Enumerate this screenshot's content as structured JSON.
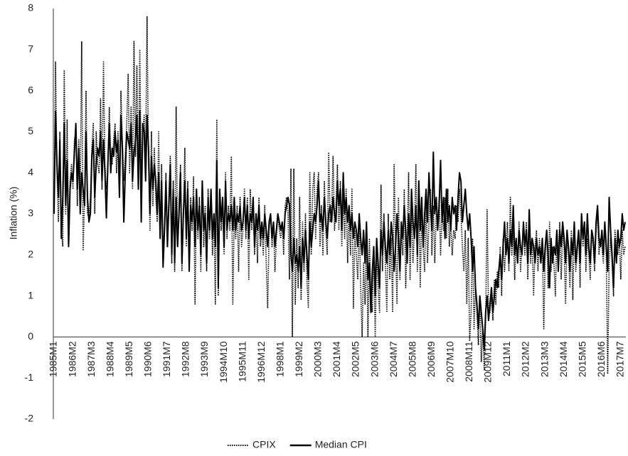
{
  "chart_data": {
    "type": "line",
    "y_label": "Inflation (%)",
    "ylim": [
      -2,
      8
    ],
    "yticks": [
      -2,
      -1,
      0,
      1,
      2,
      3,
      4,
      5,
      6,
      7,
      8
    ],
    "grid": false,
    "legend": "bottom",
    "categories": [
      "1985M1",
      null,
      null,
      null,
      null,
      null,
      null,
      null,
      null,
      null,
      null,
      null,
      null,
      "1986M2",
      null,
      null,
      null,
      null,
      null,
      null,
      null,
      null,
      null,
      null,
      null,
      null,
      "1987M3",
      null,
      null,
      null,
      null,
      null,
      null,
      null,
      null,
      null,
      null,
      null,
      null,
      "1988M4",
      null,
      null,
      null,
      null,
      null,
      null,
      null,
      null,
      null,
      null,
      null,
      null,
      "1989M5",
      null,
      null,
      null,
      null,
      null,
      null,
      null,
      null,
      null,
      null,
      null,
      null,
      "1990M6",
      null,
      null,
      null,
      null,
      null,
      null,
      null,
      null,
      null,
      null,
      null,
      null,
      "1991M7",
      null,
      null,
      null,
      null,
      null,
      null,
      null,
      null,
      null,
      null,
      null,
      null,
      "1992M8",
      null,
      null,
      null,
      null,
      null,
      null,
      null,
      null,
      null,
      null,
      null,
      null,
      "1993M9",
      null,
      null,
      null,
      null,
      null,
      null,
      null,
      null,
      null,
      null,
      null,
      null,
      "1994M10",
      null,
      null,
      null,
      null,
      null,
      null,
      null,
      null,
      null,
      null,
      null,
      null,
      "1995M11",
      null,
      null,
      null,
      null,
      null,
      null,
      null,
      null,
      null,
      null,
      null,
      null,
      "1996M12",
      null,
      null,
      null,
      null,
      null,
      null,
      null,
      null,
      null,
      null,
      null,
      null,
      "1998M1",
      null,
      null,
      null,
      null,
      null,
      null,
      null,
      null,
      null,
      null,
      null,
      null,
      "1999M2",
      null,
      null,
      null,
      null,
      null,
      null,
      null,
      null,
      null,
      null,
      null,
      null,
      "2000M3",
      null,
      null,
      null,
      null,
      null,
      null,
      null,
      null,
      null,
      null,
      null,
      null,
      "2001M4",
      null,
      null,
      null,
      null,
      null,
      null,
      null,
      null,
      null,
      null,
      null,
      null,
      "2002M5",
      null,
      null,
      null,
      null,
      null,
      null,
      null,
      null,
      null,
      null,
      null,
      null,
      "2003M6",
      null,
      null,
      null,
      null,
      null,
      null,
      null,
      null,
      null,
      null,
      null,
      null,
      "2004M7",
      null,
      null,
      null,
      null,
      null,
      null,
      null,
      null,
      null,
      null,
      null,
      null,
      "2005M8",
      null,
      null,
      null,
      null,
      null,
      null,
      null,
      null,
      null,
      null,
      null,
      null,
      "2006M9",
      null,
      null,
      null,
      null,
      null,
      null,
      null,
      null,
      null,
      null,
      null,
      null,
      "2007M10",
      null,
      null,
      null,
      null,
      null,
      null,
      null,
      null,
      null,
      null,
      null,
      null,
      "2008M11",
      null,
      null,
      null,
      null,
      null,
      null,
      null,
      null,
      null,
      null,
      null,
      null,
      "2009M12",
      null,
      null,
      null,
      null,
      null,
      null,
      null,
      null,
      null,
      null,
      null,
      null,
      "2011M1",
      null,
      null,
      null,
      null,
      null,
      null,
      null,
      null,
      null,
      null,
      null,
      null,
      "2012M2",
      null,
      null,
      null,
      null,
      null,
      null,
      null,
      null,
      null,
      null,
      null,
      null,
      "2013M3",
      null,
      null,
      null,
      null,
      null,
      null,
      null,
      null,
      null,
      null,
      null,
      null,
      "2014M4",
      null,
      null,
      null,
      null,
      null,
      null,
      null,
      null,
      null,
      null,
      null,
      null,
      "2015M5",
      null,
      null,
      null,
      null,
      null,
      null,
      null,
      null,
      null,
      null,
      null,
      null,
      "2016M6",
      null,
      null,
      null,
      null,
      null,
      null,
      null,
      null,
      null,
      null,
      null,
      null,
      "2017M7",
      null,
      null,
      null
    ],
    "series": [
      {
        "name": "CPIX",
        "color": "#000000",
        "dash": "dotted",
        "values": [
          3.2,
          6.7,
          4.0,
          2.8,
          5.0,
          2.6,
          2.2,
          6.5,
          3.0,
          5.3,
          2.4,
          3.8,
          4.2,
          3.6,
          4.8,
          5.0,
          3.2,
          4.8,
          3.4,
          7.2,
          2.1,
          3.4,
          6.0,
          3.0,
          2.9,
          3.4,
          4.6,
          5.2,
          3.0,
          5.0,
          4.2,
          4.0,
          5.8,
          3.6,
          6.7,
          4.2,
          3.6,
          4.0,
          5.6,
          4.4,
          4.2,
          4.8,
          5.2,
          4.0,
          5.0,
          3.6,
          6.0,
          4.8,
          3.8,
          4.4,
          5.2,
          6.4,
          4.0,
          5.6,
          3.6,
          7.2,
          4.4,
          6.6,
          3.6,
          7.0,
          3.8,
          5.0,
          5.4,
          4.4,
          7.8,
          4.2,
          2.6,
          5.0,
          3.2,
          4.6,
          3.4,
          2.8,
          5.0,
          2.4,
          4.2,
          2.0,
          2.8,
          4.0,
          2.4,
          3.4,
          4.4,
          1.8,
          3.8,
          1.6,
          5.6,
          2.2,
          3.2,
          4.2,
          1.6,
          3.0,
          4.6,
          2.2,
          3.8,
          1.8,
          3.4,
          2.6,
          3.9,
          0.8,
          3.6,
          2.4,
          3.4,
          1.6,
          3.8,
          2.2,
          3.2,
          1.6,
          3.6,
          2.4,
          3.4,
          2.0,
          3.0,
          0.8,
          5.3,
          1.0,
          3.6,
          2.6,
          3.2,
          2.0,
          4.0,
          2.4,
          3.2,
          2.6,
          4.4,
          0.8,
          3.0,
          2.4,
          3.2,
          1.6,
          3.4,
          2.2,
          2.6,
          3.6,
          2.4,
          3.4,
          1.4,
          3.6,
          2.6,
          3.2,
          2.0,
          3.0,
          1.8,
          3.4,
          2.2,
          2.6,
          2.0,
          3.2,
          1.8,
          0.7,
          2.6,
          3.0,
          2.2,
          2.8,
          1.6,
          2.4,
          3.0,
          2.6,
          2.4,
          2.8,
          2.0,
          3.2,
          3.4,
          3.0,
          1.4,
          4.1,
          0.0,
          4.1,
          0.8,
          2.4,
          1.2,
          3.4,
          0.9,
          2.8,
          1.6,
          3.0,
          1.4,
          0.7,
          4.0,
          2.0,
          3.6,
          4.0,
          2.4,
          3.6,
          4.0,
          2.2,
          3.2,
          2.0,
          3.8,
          2.6,
          2.0,
          4.5,
          2.8,
          3.0,
          4.4,
          2.6,
          3.2,
          4.2,
          2.6,
          3.8,
          2.2,
          3.4,
          2.4,
          3.6,
          1.8,
          3.0,
          2.0,
          3.6,
          0.7,
          2.6,
          2.0,
          1.4,
          3.0,
          1.2,
          0.0,
          1.8,
          0.8,
          2.4,
          0.0,
          2.4,
          1.0,
          0.6,
          2.2,
          0.0,
          2.0,
          1.2,
          0.6,
          3.7,
          1.6,
          3.0,
          1.8,
          0.6,
          3.0,
          1.4,
          2.4,
          0.6,
          4.2,
          2.2,
          0.8,
          3.4,
          1.4,
          2.6,
          2.0,
          3.6,
          1.2,
          2.4,
          4.0,
          1.4,
          3.2,
          1.8,
          2.6,
          4.2,
          1.6,
          3.8,
          1.2,
          3.0,
          2.2,
          1.6,
          3.4,
          1.8,
          2.8,
          3.6,
          2.0,
          3.2,
          1.8,
          3.0,
          2.8,
          3.4,
          2.0,
          3.0,
          2.6,
          3.4,
          2.4,
          3.6,
          2.2,
          2.8,
          2.0,
          2.6,
          2.4,
          3.2,
          2.8,
          3.6,
          3.0,
          2.2,
          1.6,
          2.6,
          0.8,
          2.4,
          -0.1,
          0.6,
          2.4,
          0.2,
          1.2,
          0.6,
          -0.2,
          1.0,
          -0.6,
          0.2,
          -0.8,
          0.4,
          3.1,
          0.6,
          0.6,
          1.0,
          0.4,
          1.4,
          0.8,
          1.6,
          1.2,
          2.2,
          1.0,
          2.4,
          1.6,
          2.2,
          2.8,
          1.6,
          3.4,
          2.0,
          2.6,
          1.4,
          2.4,
          1.8,
          2.8,
          1.6,
          2.2,
          2.6,
          2.0,
          2.8,
          1.4,
          2.6,
          1.8,
          2.4,
          1.0,
          2.2,
          2.6,
          1.6,
          2.4,
          2.0,
          2.4,
          0.2,
          2.0,
          2.6,
          1.2,
          2.8,
          1.6,
          2.2,
          1.8,
          1.0,
          2.6,
          2.0,
          2.8,
          1.4,
          2.6,
          2.2,
          0.8,
          2.4,
          2.0,
          1.2,
          2.6,
          0.9,
          2.8,
          1.6,
          2.0,
          2.6,
          1.2,
          3.0,
          2.2,
          2.8,
          1.6,
          2.4,
          2.0,
          1.4,
          2.6,
          2.2,
          1.6,
          2.6,
          3.0,
          2.0,
          2.4,
          2.2,
          1.8,
          2.8,
          2.0,
          -0.9,
          1.8,
          2.4,
          1.8,
          1.0,
          2.6,
          2.2,
          2.0,
          2.4,
          1.4,
          2.6,
          2.0,
          2.2
        ]
      },
      {
        "name": "Median CPI",
        "color": "#000000",
        "dash": "solid",
        "values": [
          3.0,
          5.5,
          4.2,
          3.4,
          4.8,
          2.4,
          3.4,
          5.2,
          3.2,
          4.3,
          2.2,
          3.6,
          4.0,
          3.8,
          4.5,
          5.2,
          3.6,
          4.6,
          3.0,
          4.0,
          3.6,
          3.2,
          5.0,
          3.4,
          2.8,
          3.0,
          4.4,
          4.8,
          3.4,
          4.2,
          4.6,
          4.4,
          5.0,
          3.8,
          4.8,
          4.0,
          2.9,
          4.2,
          5.2,
          4.0,
          4.6,
          4.4,
          5.0,
          4.5,
          4.8,
          3.4,
          5.4,
          4.6,
          2.8,
          4.0,
          5.0,
          4.8,
          4.6,
          5.2,
          3.8,
          4.5,
          4.8,
          5.4,
          3.6,
          5.5,
          2.8,
          5.2,
          5.0,
          3.8,
          5.4,
          4.6,
          3.0,
          4.4,
          3.6,
          4.2,
          3.8,
          3.0,
          4.0,
          2.4,
          3.8,
          1.7,
          2.6,
          3.8,
          2.2,
          3.2,
          4.2,
          2.0,
          3.6,
          1.8,
          3.4,
          2.2,
          3.0,
          4.0,
          1.8,
          3.0,
          3.8,
          2.4,
          3.6,
          1.6,
          3.2,
          2.8,
          3.4,
          2.2,
          3.6,
          2.6,
          3.2,
          2.0,
          3.8,
          2.6,
          3.0,
          1.8,
          3.4,
          2.6,
          3.6,
          2.4,
          3.0,
          2.2,
          4.3,
          1.2,
          3.6,
          2.8,
          3.4,
          2.2,
          3.8,
          2.6,
          3.0,
          2.8,
          3.2,
          2.6,
          3.4,
          2.6,
          3.0,
          2.8,
          3.2,
          2.6,
          2.8,
          3.4,
          2.6,
          3.2,
          2.4,
          3.0,
          2.8,
          3.4,
          2.2,
          3.0,
          2.6,
          3.2,
          2.4,
          2.8,
          2.4,
          3.0,
          2.6,
          2.2,
          2.8,
          3.0,
          2.4,
          2.8,
          2.2,
          2.6,
          3.0,
          2.8,
          2.6,
          2.8,
          2.4,
          3.0,
          3.2,
          3.4,
          3.2,
          2.0,
          1.6,
          2.4,
          1.8,
          2.0,
          1.6,
          2.2,
          1.2,
          2.4,
          1.8,
          2.6,
          2.0,
          1.4,
          2.8,
          2.2,
          2.6,
          3.0,
          2.8,
          3.2,
          3.8,
          2.8,
          3.0,
          2.6,
          3.4,
          2.8,
          2.4,
          3.0,
          3.2,
          2.8,
          3.4,
          3.0,
          2.8,
          3.8,
          3.2,
          3.6,
          2.6,
          4.0,
          3.0,
          3.4,
          2.8,
          3.2,
          2.6,
          3.0,
          2.4,
          2.8,
          2.6,
          2.2,
          3.0,
          2.4,
          2.0,
          2.6,
          1.8,
          2.8,
          1.4,
          1.8,
          0.6,
          1.6,
          2.2,
          1.0,
          2.4,
          1.8,
          1.2,
          2.6,
          2.0,
          2.8,
          2.2,
          1.8,
          2.6,
          2.0,
          2.8,
          2.4,
          1.6,
          2.2,
          3.0,
          2.4,
          1.6,
          2.8,
          2.4,
          3.2,
          2.6,
          1.8,
          3.0,
          2.2,
          3.6,
          2.8,
          2.4,
          3.2,
          2.0,
          3.8,
          2.6,
          3.4,
          2.2,
          3.0,
          3.6,
          2.8,
          4.0,
          3.2,
          2.6,
          4.5,
          3.0,
          3.4,
          2.6,
          3.2,
          4.3,
          2.8,
          3.4,
          2.4,
          3.6,
          2.8,
          3.2,
          2.6,
          3.4,
          3.0,
          3.2,
          2.6,
          3.4,
          4.0,
          3.8,
          2.8,
          3.2,
          3.6,
          3.0,
          2.6,
          3.0,
          2.4,
          1.6,
          2.2,
          1.2,
          0.8,
          0.2,
          1.0,
          0.6,
          0.2,
          -0.3,
          0.6,
          1.0,
          0.4,
          0.8,
          1.2,
          0.6,
          1.0,
          1.4,
          1.2,
          1.6,
          2.0,
          1.4,
          2.2,
          2.8,
          2.0,
          2.4,
          1.8,
          2.6,
          2.2,
          3.2,
          2.0,
          2.4,
          1.8,
          2.6,
          2.2,
          2.0,
          2.8,
          2.2,
          2.6,
          1.8,
          3.1,
          2.0,
          2.4,
          2.2,
          1.8,
          2.4,
          2.0,
          2.2,
          1.8,
          2.4,
          1.6,
          2.2,
          2.6,
          2.0,
          1.2,
          2.4,
          1.8,
          2.2,
          2.0,
          2.6,
          1.6,
          2.6,
          2.2,
          2.8,
          2.4,
          1.8,
          2.6,
          2.2,
          1.6,
          2.4,
          2.0,
          2.8,
          1.8,
          2.2,
          2.6,
          1.8,
          3.0,
          2.4,
          2.8,
          2.0,
          3.0,
          2.2,
          1.8,
          2.6,
          2.4,
          1.8,
          2.8,
          3.2,
          2.4,
          2.2,
          2.6,
          2.0,
          2.8,
          2.2,
          1.6,
          3.4,
          2.6,
          2.0,
          1.2,
          2.4,
          1.8,
          2.6,
          2.2,
          2.4,
          3.0,
          2.6,
          2.8
        ]
      }
    ]
  }
}
